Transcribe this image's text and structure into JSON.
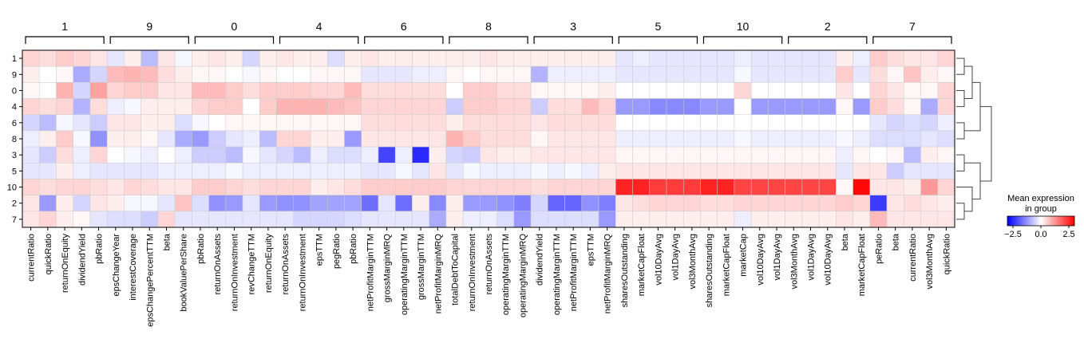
{
  "chart_data": {
    "type": "heatmap",
    "title": "",
    "rows": [
      "1",
      "9",
      "0",
      "4",
      "6",
      "8",
      "3",
      "5",
      "10",
      "2",
      "7"
    ],
    "group_order": [
      "1",
      "9",
      "0",
      "4",
      "6",
      "8",
      "3",
      "5",
      "10",
      "2",
      "7"
    ],
    "column_groups": [
      {
        "group": "1",
        "columns": [
          "currentRatio",
          "quickRatio",
          "returnOnEquity",
          "dividendYield",
          "pbRatio"
        ]
      },
      {
        "group": "9",
        "columns": [
          "epsChangeYear",
          "interestCoverage",
          "epsChangePercentTTM",
          "beta",
          "bookValuePerShare"
        ]
      },
      {
        "group": "0",
        "columns": [
          "pbRatio",
          "returnOnAssets",
          "returnOnInvestment",
          "revChangeTTM",
          "returnOnEquity"
        ]
      },
      {
        "group": "4",
        "columns": [
          "returnOnAssets",
          "returnOnInvestment",
          "epsTTM",
          "pegRatio",
          "pbRatio"
        ]
      },
      {
        "group": "6",
        "columns": [
          "netProfitMarginTTM",
          "grossMarginMRQ",
          "operatingMarginTTM",
          "grossMarginTTM",
          "netProfitMarginMRQ"
        ]
      },
      {
        "group": "8",
        "columns": [
          "totalDebtToCapital",
          "returnOnInvestment",
          "returnOnAssets",
          "operatingMarginTTM",
          "operatingMarginMRQ"
        ]
      },
      {
        "group": "3",
        "columns": [
          "dividendYield",
          "operatingMarginTTM",
          "netProfitMarginTTM",
          "epsTTM",
          "netProfitMarginMRQ"
        ]
      },
      {
        "group": "5",
        "columns": [
          "sharesOutstanding",
          "marketCapFloat",
          "vol10DayAvg",
          "vol1DayAvg",
          "vol3MonthAvg"
        ]
      },
      {
        "group": "10",
        "columns": [
          "sharesOutstanding",
          "marketCapFloat",
          "marketCap",
          "vol10DayAvg",
          "vol1DayAvg"
        ]
      },
      {
        "group": "2",
        "columns": [
          "vol3MonthAvg",
          "vol1DayAvg",
          "vol10DayAvg",
          "beta",
          "marketCapFloat"
        ]
      },
      {
        "group": "7",
        "columns": [
          "peRatio",
          "beta",
          "currentRatio",
          "vol3MonthAvg",
          "quickRatio"
        ]
      }
    ],
    "values": [
      [
        0.5,
        0.4,
        0.6,
        0.5,
        0.3,
        -0.3,
        0.2,
        -0.8,
        0.3,
        -0.1,
        0.2,
        0.3,
        0.2,
        -0.5,
        0.2,
        0.3,
        0.2,
        0.2,
        -0.4,
        0.2,
        0.3,
        0.2,
        0.2,
        0.2,
        0.2,
        0.2,
        0.2,
        0.3,
        0.2,
        0.2,
        0.2,
        0.2,
        0.2,
        0.2,
        0.2,
        -0.3,
        -0.2,
        -0.3,
        -0.3,
        -0.3,
        -0.3,
        -0.3,
        -0.2,
        -0.3,
        -0.3,
        -0.3,
        -0.3,
        -0.3,
        0.2,
        -0.2,
        0.6,
        0.4,
        0.3,
        0.3,
        0.5
      ],
      [
        0.2,
        0.0,
        0.1,
        -1.0,
        -0.5,
        0.8,
        0.9,
        0.8,
        0.4,
        0.2,
        0.1,
        0.1,
        0.0,
        -0.1,
        0.1,
        0.0,
        0.0,
        0.1,
        0.1,
        0.1,
        -0.3,
        -0.3,
        -0.3,
        -0.2,
        -0.2,
        0.1,
        0.0,
        0.1,
        0.1,
        0.1,
        -0.9,
        -0.2,
        -0.2,
        -0.2,
        -0.2,
        -0.3,
        -0.3,
        -0.3,
        -0.3,
        -0.3,
        -0.3,
        -0.3,
        -0.1,
        -0.3,
        -0.3,
        -0.3,
        -0.3,
        -0.3,
        0.6,
        -0.3,
        0.4,
        0.1,
        0.7,
        0.2,
        0.1
      ],
      [
        0.1,
        0.0,
        0.9,
        -0.5,
        1.1,
        0.5,
        0.6,
        0.6,
        0.3,
        0.3,
        0.8,
        0.8,
        0.6,
        0.4,
        0.6,
        0.6,
        0.6,
        0.5,
        0.5,
        0.8,
        0.4,
        0.4,
        0.4,
        0.4,
        0.4,
        0.0,
        0.6,
        0.6,
        0.4,
        0.4,
        0.1,
        0.1,
        0.1,
        0.1,
        0.2,
        0.0,
        0.0,
        0.0,
        0.0,
        0.0,
        0.0,
        0.0,
        0.5,
        0.0,
        0.0,
        0.0,
        0.0,
        0.0,
        0.3,
        0.0,
        0.5,
        0.3,
        0.1,
        0.1,
        0.5
      ],
      [
        0.5,
        0.4,
        0.5,
        -0.9,
        0.4,
        -0.2,
        -0.1,
        0.2,
        0.2,
        0.2,
        0.5,
        0.6,
        0.6,
        0.0,
        0.6,
        0.9,
        0.9,
        0.9,
        0.8,
        0.7,
        0.5,
        0.5,
        0.5,
        0.5,
        0.5,
        -0.6,
        0.6,
        0.6,
        0.5,
        0.5,
        -0.6,
        0.4,
        0.4,
        0.8,
        0.5,
        -1.2,
        -1.2,
        -1.4,
        -1.4,
        -1.4,
        -1.2,
        -1.2,
        0.0,
        -1.2,
        -1.2,
        -1.2,
        -1.2,
        -1.2,
        0.1,
        -1.2,
        0.6,
        0.4,
        0.1,
        -1.0,
        0.5
      ],
      [
        -0.5,
        -0.8,
        -0.1,
        -0.3,
        -0.6,
        0.3,
        0.3,
        0.2,
        0.2,
        -0.4,
        -0.1,
        0.0,
        0.1,
        0.1,
        0.1,
        0.1,
        0.1,
        0.1,
        0.1,
        0.1,
        0.4,
        0.4,
        0.4,
        0.4,
        0.4,
        0.2,
        0.4,
        0.4,
        0.4,
        0.4,
        0.3,
        0.4,
        0.4,
        0.4,
        0.4,
        0.0,
        0.0,
        0.0,
        0.0,
        0.0,
        0.0,
        0.0,
        0.0,
        0.0,
        0.0,
        0.0,
        0.0,
        0.0,
        0.0,
        0.0,
        -0.3,
        -0.5,
        -0.4,
        -0.5,
        -0.2
      ],
      [
        -0.2,
        0.2,
        0.6,
        -0.1,
        -1.3,
        0.2,
        0.2,
        0.1,
        -0.3,
        -1.0,
        -1.2,
        -0.6,
        -0.3,
        -0.2,
        -0.8,
        0.5,
        0.5,
        0.2,
        0.2,
        -1.2,
        0.3,
        0.3,
        0.3,
        0.3,
        0.3,
        0.9,
        0.6,
        0.4,
        0.4,
        0.4,
        0.1,
        0.3,
        0.3,
        0.3,
        0.3,
        -0.2,
        -0.2,
        -0.2,
        -0.2,
        -0.2,
        -0.2,
        -0.2,
        -0.1,
        -0.2,
        -0.2,
        -0.2,
        -0.2,
        -0.2,
        -0.1,
        -0.2,
        -0.4,
        -0.4,
        -0.4,
        -0.3,
        -0.4
      ],
      [
        -0.3,
        -0.6,
        0.4,
        -0.2,
        0.5,
        0.0,
        -0.1,
        -0.2,
        0.0,
        -0.2,
        -0.6,
        -0.6,
        -0.8,
        -0.1,
        -0.3,
        -0.5,
        -0.8,
        -0.2,
        -0.4,
        -0.4,
        -0.2,
        -2.2,
        -0.2,
        -2.5,
        0.2,
        -0.5,
        -0.6,
        0.3,
        0.2,
        0.2,
        0.3,
        0.3,
        0.3,
        0.3,
        0.3,
        0.1,
        0.1,
        0.1,
        0.1,
        0.1,
        0.1,
        0.1,
        0.1,
        0.1,
        0.1,
        0.1,
        0.1,
        0.1,
        -0.2,
        0.1,
        0.0,
        0.1,
        -0.8,
        0.2,
        0.1
      ],
      [
        -0.3,
        -0.3,
        0.2,
        -0.2,
        -0.3,
        -0.3,
        -0.3,
        -0.3,
        -0.2,
        -0.2,
        -0.2,
        -0.2,
        -0.1,
        -0.2,
        -0.2,
        -0.2,
        -0.2,
        -0.2,
        -0.2,
        -0.2,
        -0.3,
        -0.3,
        -0.1,
        -0.3,
        0.3,
        -0.3,
        -0.1,
        -0.2,
        -0.2,
        -0.2,
        -0.1,
        -0.2,
        -0.1,
        -0.2,
        0.2,
        0.3,
        0.3,
        0.3,
        0.3,
        0.3,
        0.3,
        0.3,
        0.3,
        0.3,
        0.3,
        0.3,
        0.3,
        0.3,
        -0.3,
        0.3,
        0.3,
        -0.6,
        -0.3,
        -0.3,
        -0.3
      ],
      [
        0.5,
        0.4,
        0.5,
        0.5,
        0.4,
        0.3,
        0.5,
        0.4,
        0.3,
        0.3,
        0.6,
        0.6,
        0.5,
        0.4,
        0.5,
        0.5,
        0.5,
        0.2,
        0.3,
        0.4,
        0.6,
        0.6,
        0.6,
        0.6,
        0.6,
        0.5,
        0.5,
        0.5,
        0.5,
        0.5,
        0.4,
        0.5,
        0.5,
        0.5,
        0.5,
        2.6,
        2.6,
        2.3,
        2.3,
        2.3,
        2.6,
        2.6,
        2.2,
        2.2,
        2.2,
        2.2,
        2.2,
        2.2,
        0.1,
        2.9,
        0.3,
        0.3,
        0.2,
        1.2,
        0.5
      ],
      [
        0.3,
        -1.2,
        0.2,
        -0.5,
        0.3,
        0.2,
        -0.1,
        -0.1,
        -0.3,
        0.7,
        -0.4,
        -1.3,
        -1.2,
        -0.3,
        -1.2,
        -1.3,
        -1.3,
        -1.1,
        -1.1,
        -1.1,
        -1.7,
        -0.3,
        -1.7,
        0.2,
        -1.4,
        0.2,
        -1.2,
        -1.2,
        -1.3,
        -1.5,
        -0.5,
        -1.8,
        -1.8,
        -1.3,
        -1.5,
        0.3,
        0.4,
        0.5,
        0.5,
        0.5,
        0.4,
        0.4,
        0.5,
        0.5,
        0.5,
        0.5,
        0.5,
        0.5,
        0.6,
        0.5,
        -2.3,
        0.3,
        0.4,
        0.3,
        0.2
      ],
      [
        0.3,
        0.5,
        0.2,
        0.1,
        -0.3,
        -0.4,
        -0.4,
        -0.6,
        0.5,
        -0.3,
        -0.3,
        -0.3,
        -0.3,
        -0.3,
        -0.3,
        -0.3,
        -0.5,
        -0.5,
        -0.5,
        -0.4,
        -0.3,
        -0.3,
        -0.3,
        -0.3,
        -1.0,
        0.2,
        -0.2,
        -0.2,
        -0.4,
        -1.2,
        -0.4,
        -0.4,
        -0.4,
        -0.4,
        -1.2,
        0.2,
        0.2,
        0.2,
        0.2,
        0.2,
        0.2,
        0.2,
        -0.2,
        0.2,
        0.2,
        0.2,
        0.2,
        0.2,
        0.3,
        0.2,
        0.8,
        0.3,
        0.3,
        0.3,
        0.3
      ]
    ],
    "colorbar": {
      "label": "Mean expression\nin group",
      "min": -3.0,
      "max": 3.0,
      "ticks": [
        "−2.5",
        "0.0",
        "2.5"
      ],
      "tick_values": [
        -2.5,
        0.0,
        2.5
      ],
      "colormap": "bwr"
    },
    "colors": {
      "low": "#0000ff",
      "mid": "#ffffff",
      "high": "#ff0000",
      "grid": "#cccccc",
      "frame": "#000000"
    },
    "dendrogram": {
      "placement": "right"
    },
    "grid": true
  }
}
